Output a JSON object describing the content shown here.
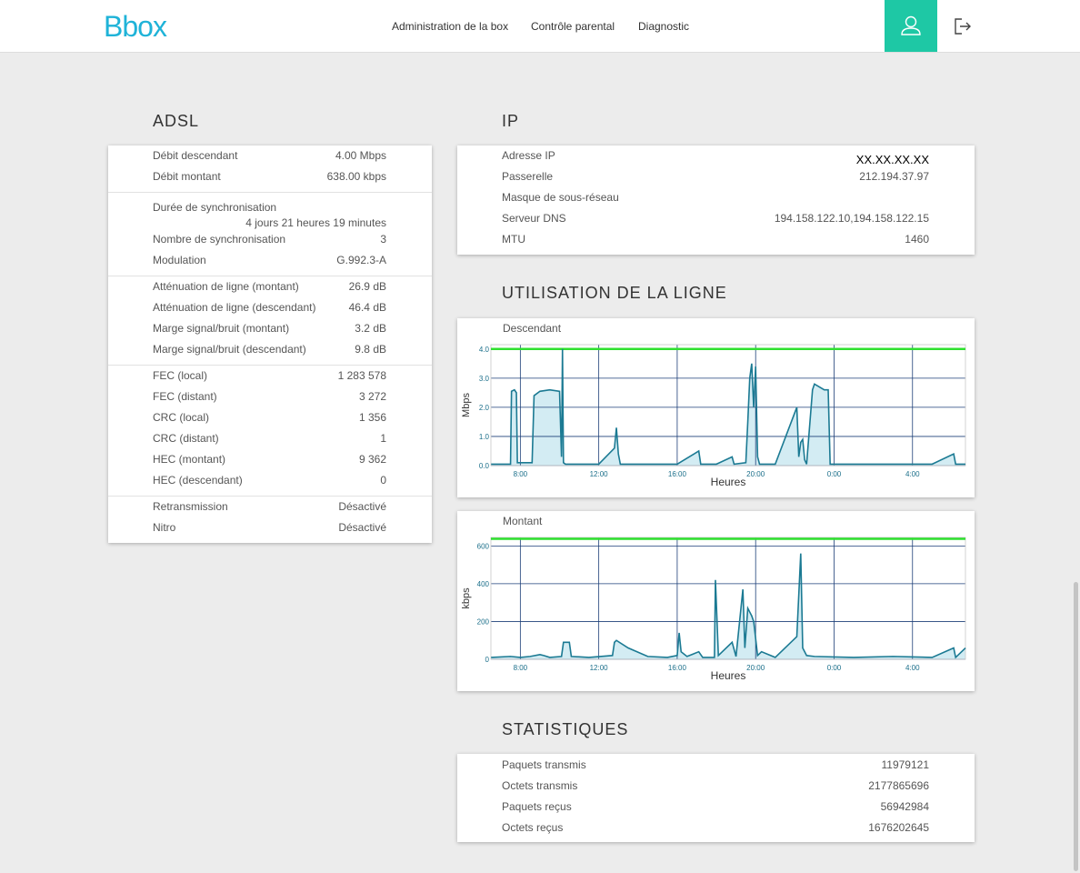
{
  "header": {
    "logo": "Bbox",
    "nav": [
      "Administration de la box",
      "Contrôle parental",
      "Diagnostic"
    ]
  },
  "adsl": {
    "title": "ADSL",
    "groups": [
      [
        {
          "label": "Débit descendant",
          "value": "4.00 Mbps"
        },
        {
          "label": "Débit montant",
          "value": "638.00 kbps"
        }
      ],
      [
        {
          "label": "Durée de synchronisation",
          "value": "4 jours 21 heures 19 minutes"
        },
        {
          "label": "Nombre de synchronisation",
          "value": "3"
        },
        {
          "label": "Modulation",
          "value": "G.992.3-A"
        }
      ],
      [
        {
          "label": "Atténuation de ligne (montant)",
          "value": "26.9 dB"
        },
        {
          "label": "Atténuation de ligne (descendant)",
          "value": "46.4 dB"
        },
        {
          "label": "Marge signal/bruit (montant)",
          "value": "3.2 dB"
        },
        {
          "label": "Marge signal/bruit (descendant)",
          "value": "9.8 dB"
        }
      ],
      [
        {
          "label": "FEC (local)",
          "value": "1 283 578"
        },
        {
          "label": "FEC (distant)",
          "value": "3 272"
        },
        {
          "label": "CRC (local)",
          "value": "1 356"
        },
        {
          "label": "CRC (distant)",
          "value": "1"
        },
        {
          "label": "HEC (montant)",
          "value": "9 362"
        },
        {
          "label": "HEC (descendant)",
          "value": "0"
        }
      ],
      [
        {
          "label": "Retransmission",
          "value": "Désactivé"
        },
        {
          "label": "Nitro",
          "value": "Désactivé"
        }
      ]
    ]
  },
  "ip": {
    "title": "IP",
    "rows": [
      {
        "label": "Adresse IP",
        "value": "XX.XX.XX.XX"
      },
      {
        "label": "Passerelle",
        "value": "212.194.37.97"
      },
      {
        "label": "Masque de sous-réseau"
      },
      {
        "label": "Serveur DNS",
        "value": "194.158.122.10,194.158.122.15"
      },
      {
        "label": "MTU",
        "value": "1460"
      }
    ]
  },
  "usage": {
    "title": "UTILISATION DE LA LIGNE"
  },
  "chart_data": [
    {
      "type": "line",
      "title": "Descendant",
      "ylabel": "Mbps",
      "xlabel": "Heures",
      "color": "#1b7a93",
      "fill": "#d3ecf3",
      "grid": true,
      "x": [
        6.51,
        7.0,
        7.5,
        7.55,
        7.7,
        7.8,
        7.85,
        8.6,
        8.7,
        9.0,
        9.5,
        10.0,
        10.1,
        10.15,
        10.2,
        10.3,
        11,
        12,
        12.8,
        12.9,
        13.0,
        13.1,
        14,
        15,
        16,
        17.1,
        17.2,
        18,
        18.8,
        18.9,
        19.5,
        19.6,
        19.7,
        19.8,
        19.9,
        20.0,
        20.1,
        20.2,
        21,
        22.1,
        22.2,
        22.3,
        22.4,
        22.5,
        22.6,
        22.9,
        23.0,
        23.5,
        23.7,
        23.8,
        25,
        27,
        29,
        30.1,
        30.2,
        30.7
      ],
      "values": [
        0.05,
        0.05,
        0.05,
        2.55,
        2.6,
        2.5,
        0.1,
        0.1,
        2.4,
        2.55,
        2.6,
        2.55,
        0.3,
        4.0,
        0.1,
        0.05,
        0.05,
        0.05,
        0.6,
        1.3,
        0.4,
        0.05,
        0.05,
        0.05,
        0.05,
        0.5,
        0.05,
        0.05,
        0.3,
        0.05,
        0.1,
        1.5,
        3.0,
        3.5,
        2.0,
        3.4,
        0.3,
        0.05,
        0.05,
        2.0,
        0.3,
        0.8,
        0.9,
        0.2,
        0.05,
        2.6,
        2.8,
        2.6,
        2.6,
        0.05,
        0.05,
        0.05,
        0.05,
        0.4,
        0.05,
        0.05
      ],
      "reference_line": {
        "value": 4.0,
        "color": "#2fe02f"
      },
      "xlim": [
        6.5,
        30.7
      ],
      "ylim": [
        0,
        4.15
      ],
      "xticks": [
        {
          "value": 8,
          "label": "8:00"
        },
        {
          "value": 12,
          "label": "12:00"
        },
        {
          "value": 16,
          "label": "16:00"
        },
        {
          "value": 20,
          "label": "20:00"
        },
        {
          "value": 24,
          "label": "0:00"
        },
        {
          "value": 28,
          "label": "4:00"
        }
      ],
      "yticks": [
        {
          "value": 0,
          "label": "0.0"
        },
        {
          "value": 1,
          "label": "1.0"
        },
        {
          "value": 2,
          "label": "2.0"
        },
        {
          "value": 3,
          "label": "3.0"
        },
        {
          "value": 4,
          "label": "4.0"
        }
      ]
    },
    {
      "type": "line",
      "title": "Montant",
      "ylabel": "kbps",
      "xlabel": "Heures",
      "color": "#1b7a93",
      "fill": "#d3ecf3",
      "grid": true,
      "x": [
        6.51,
        7.5,
        8.0,
        8.5,
        9.0,
        9.2,
        9.5,
        10.1,
        10.2,
        10.5,
        10.6,
        11.5,
        12.7,
        12.8,
        12.9,
        13.5,
        14.5,
        15.5,
        16.0,
        16.1,
        16.2,
        16.5,
        17.1,
        17.3,
        17.9,
        17.95,
        18.1,
        18.8,
        19.0,
        19.35,
        19.45,
        19.6,
        19.7,
        19.8,
        19.9,
        20.1,
        20.3,
        21.0,
        22.1,
        22.3,
        22.4,
        22.6,
        23.0,
        25.0,
        27.0,
        29.0,
        30.1,
        30.2,
        30.7
      ],
      "values": [
        10,
        15,
        10,
        15,
        25,
        20,
        10,
        15,
        90,
        90,
        15,
        10,
        20,
        90,
        100,
        60,
        15,
        10,
        20,
        140,
        40,
        15,
        40,
        10,
        10,
        420,
        20,
        90,
        15,
        370,
        60,
        270,
        250,
        230,
        200,
        20,
        40,
        10,
        120,
        560,
        60,
        20,
        15,
        10,
        15,
        10,
        60,
        10,
        60
      ],
      "reference_line": {
        "value": 638,
        "color": "#2fe02f"
      },
      "xlim": [
        6.5,
        30.7
      ],
      "ylim": [
        0,
        645
      ],
      "xticks": [
        {
          "value": 8,
          "label": "8:00"
        },
        {
          "value": 12,
          "label": "12:00"
        },
        {
          "value": 16,
          "label": "16:00"
        },
        {
          "value": 20,
          "label": "20:00"
        },
        {
          "value": 24,
          "label": "0:00"
        },
        {
          "value": 28,
          "label": "4:00"
        }
      ],
      "yticks": [
        0,
        200,
        400,
        600
      ]
    }
  ],
  "stats": {
    "title": "STATISTIQUES",
    "rows": [
      {
        "label": "Paquets transmis",
        "value": "11979121"
      },
      {
        "label": "Octets transmis",
        "value": "2177865696"
      },
      {
        "label": "Paquets reçus",
        "value": "56942984"
      },
      {
        "label": "Octets reçus",
        "value": "1676202645"
      }
    ]
  }
}
